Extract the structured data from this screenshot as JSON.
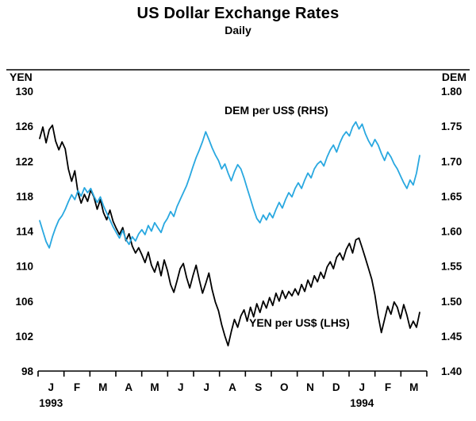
{
  "header": {
    "title": "US Dollar Exchange Rates",
    "subtitle": "Daily"
  },
  "left_axis": {
    "label": "YEN",
    "ticks": [
      "130",
      "126",
      "122",
      "118",
      "114",
      "110",
      "106",
      "102",
      "98"
    ]
  },
  "right_axis": {
    "label": "DEM",
    "ticks": [
      "1.80",
      "1.75",
      "1.70",
      "1.65",
      "1.60",
      "1.55",
      "1.50",
      "1.45",
      "1.40"
    ]
  },
  "x_axis": {
    "month_labels": [
      "J",
      "F",
      "M",
      "A",
      "M",
      "J",
      "J",
      "A",
      "S",
      "O",
      "N",
      "D",
      "J",
      "F",
      "M"
    ],
    "year_labels": [
      {
        "text": "1993",
        "month_index": 0
      },
      {
        "text": "1994",
        "month_index": 12
      }
    ]
  },
  "annotations": {
    "dem_series_label": "DEM per US$ (RHS)",
    "yen_series_label": "YEN per US$ (LHS)"
  },
  "colors": {
    "yen_line": "#000000",
    "dem_line": "#29a8e0",
    "axis": "#000000"
  },
  "chart_data": {
    "type": "line",
    "title": "US Dollar Exchange Rates",
    "subtitle": "Daily",
    "x_range": [
      "Jan 1993",
      "Mar 1994"
    ],
    "points_per_month": 8,
    "left_ylim": [
      98,
      130
    ],
    "right_ylim": [
      1.4,
      1.8
    ],
    "legend_position": "inline-annotations",
    "grid": false,
    "series": [
      {
        "name": "YEN per US$ (LHS)",
        "axis": "left",
        "color": "#000000",
        "values": [
          124.6,
          125.9,
          124.1,
          125.6,
          126.1,
          124.3,
          123.3,
          124.2,
          123.4,
          121.1,
          119.7,
          120.9,
          118.4,
          117.2,
          118.2,
          117.4,
          118.7,
          117.9,
          116.5,
          117.6,
          116.1,
          115.3,
          116.4,
          115.1,
          114.3,
          113.6,
          114.4,
          112.9,
          113.7,
          112.3,
          111.5,
          112.1,
          111.3,
          110.4,
          111.6,
          110.1,
          109.3,
          110.5,
          108.9,
          110.7,
          109.5,
          107.9,
          107.0,
          108.3,
          109.7,
          110.3,
          108.7,
          107.5,
          108.9,
          110.1,
          108.4,
          106.9,
          108.0,
          109.2,
          107.3,
          105.9,
          104.9,
          103.3,
          102.0,
          100.9,
          102.5,
          103.9,
          103.0,
          104.3,
          105.0,
          103.7,
          105.3,
          104.2,
          105.7,
          104.7,
          106.0,
          105.2,
          106.4,
          105.5,
          106.9,
          106.0,
          107.2,
          106.3,
          107.1,
          106.6,
          107.4,
          106.7,
          107.9,
          107.1,
          108.4,
          107.6,
          108.9,
          108.2,
          109.3,
          108.6,
          109.9,
          110.5,
          109.7,
          111.0,
          111.5,
          110.7,
          111.9,
          112.6,
          111.5,
          113.0,
          113.2,
          112.1,
          110.9,
          109.7,
          108.5,
          106.7,
          104.3,
          102.4,
          103.9,
          105.4,
          104.5,
          105.9,
          105.3,
          104.0,
          105.6,
          104.4,
          102.9,
          103.7,
          103.0,
          104.7
        ]
      },
      {
        "name": "DEM per US$ (RHS)",
        "axis": "right",
        "color": "#29a8e0",
        "values": [
          1.615,
          1.6,
          1.585,
          1.576,
          1.592,
          1.605,
          1.616,
          1.622,
          1.631,
          1.642,
          1.652,
          1.645,
          1.658,
          1.65,
          1.662,
          1.655,
          1.661,
          1.65,
          1.641,
          1.649,
          1.636,
          1.626,
          1.616,
          1.606,
          1.598,
          1.59,
          1.601,
          1.588,
          1.581,
          1.592,
          1.586,
          1.596,
          1.602,
          1.595,
          1.608,
          1.6,
          1.612,
          1.605,
          1.598,
          1.611,
          1.618,
          1.628,
          1.621,
          1.635,
          1.645,
          1.655,
          1.665,
          1.678,
          1.692,
          1.705,
          1.716,
          1.728,
          1.742,
          1.731,
          1.719,
          1.709,
          1.701,
          1.689,
          1.696,
          1.683,
          1.672,
          1.685,
          1.695,
          1.689,
          1.676,
          1.661,
          1.646,
          1.631,
          1.618,
          1.612,
          1.623,
          1.616,
          1.626,
          1.619,
          1.631,
          1.641,
          1.633,
          1.645,
          1.655,
          1.649,
          1.661,
          1.669,
          1.661,
          1.673,
          1.683,
          1.676,
          1.689,
          1.696,
          1.7,
          1.693,
          1.706,
          1.716,
          1.723,
          1.713,
          1.726,
          1.736,
          1.742,
          1.736,
          1.749,
          1.756,
          1.746,
          1.753,
          1.739,
          1.729,
          1.721,
          1.731,
          1.723,
          1.711,
          1.701,
          1.713,
          1.706,
          1.696,
          1.689,
          1.679,
          1.669,
          1.661,
          1.673,
          1.666,
          1.683,
          1.708
        ]
      }
    ]
  }
}
